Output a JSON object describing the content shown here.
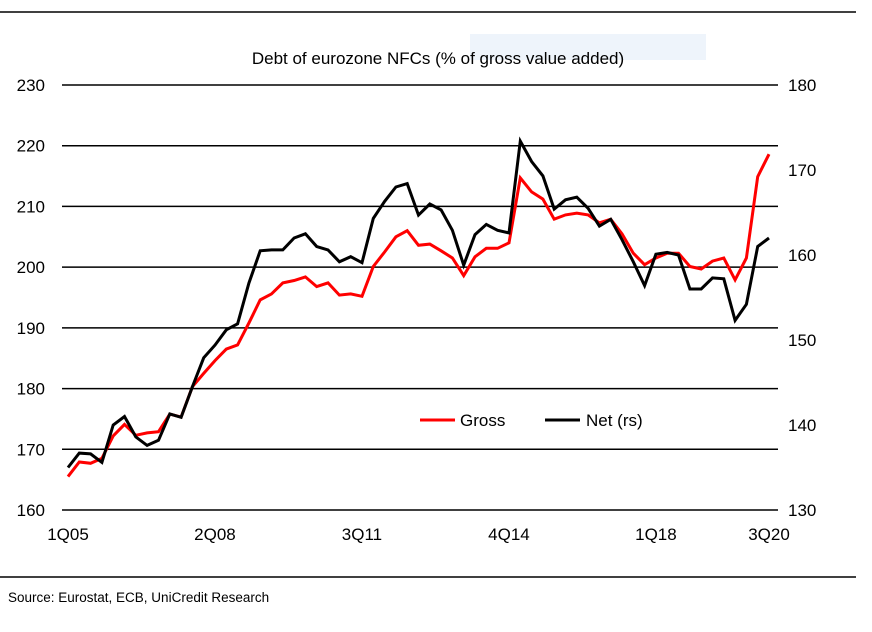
{
  "chart_data": {
    "type": "line",
    "title": "Debt of eurozone NFCs (% of gross value added)",
    "x_tick_labels": [
      "1Q05",
      "2Q08",
      "3Q11",
      "4Q14",
      "1Q18",
      "3Q20"
    ],
    "x_start": "1Q05",
    "x_end": "3Q20",
    "frequency": "quarterly",
    "y_left": {
      "ylim": [
        160,
        230
      ],
      "ticks": [
        160,
        170,
        180,
        190,
        200,
        210,
        220,
        230
      ]
    },
    "y_right": {
      "ylim": [
        130,
        180
      ],
      "ticks": [
        130,
        140,
        150,
        160,
        170,
        180
      ]
    },
    "grid": "horizontal",
    "legend_position": "lower-center",
    "series": [
      {
        "name": "Gross",
        "axis": "left",
        "color": "#ff0000",
        "values": [
          165.5,
          167.9,
          167.7,
          168.5,
          172.2,
          174.1,
          172.3,
          172.7,
          172.9,
          175.8,
          175.3,
          180.3,
          182.5,
          184.6,
          186.5,
          187.2,
          190.8,
          194.6,
          195.6,
          197.4,
          197.8,
          198.4,
          196.8,
          197.4,
          195.4,
          195.6,
          195.2,
          200.1,
          202.5,
          205.0,
          206.0,
          203.6,
          203.8,
          202.7,
          201.5,
          198.6,
          201.7,
          203.1,
          203.1,
          204.0,
          214.7,
          212.4,
          211.2,
          207.9,
          208.6,
          208.9,
          208.6,
          207.3,
          207.9,
          205.5,
          202.3,
          200.4,
          201.5,
          202.3,
          202.3,
          200.1,
          199.7,
          201.0,
          201.5,
          197.9,
          201.5,
          214.9,
          218.6
        ]
      },
      {
        "name": "Net (rs)",
        "axis": "right",
        "color": "#000000",
        "values": [
          135.0,
          136.7,
          136.6,
          135.6,
          140.0,
          141.0,
          138.6,
          137.6,
          138.2,
          141.3,
          140.9,
          144.5,
          147.9,
          149.4,
          151.2,
          151.9,
          156.7,
          160.5,
          160.6,
          160.6,
          162.0,
          162.5,
          161.0,
          160.6,
          159.2,
          159.8,
          159.1,
          164.3,
          166.3,
          168.0,
          168.4,
          164.7,
          166.0,
          165.3,
          162.9,
          158.8,
          162.4,
          163.6,
          162.9,
          162.6,
          173.4,
          171.0,
          169.3,
          165.4,
          166.5,
          166.8,
          165.5,
          163.4,
          164.2,
          161.8,
          159.2,
          156.4,
          160.1,
          160.3,
          160.0,
          156.0,
          156.0,
          157.3,
          157.2,
          152.3,
          154.2,
          161.0,
          162.0
        ]
      }
    ]
  },
  "source": "Source: Eurostat, ECB, UniCredit Research"
}
